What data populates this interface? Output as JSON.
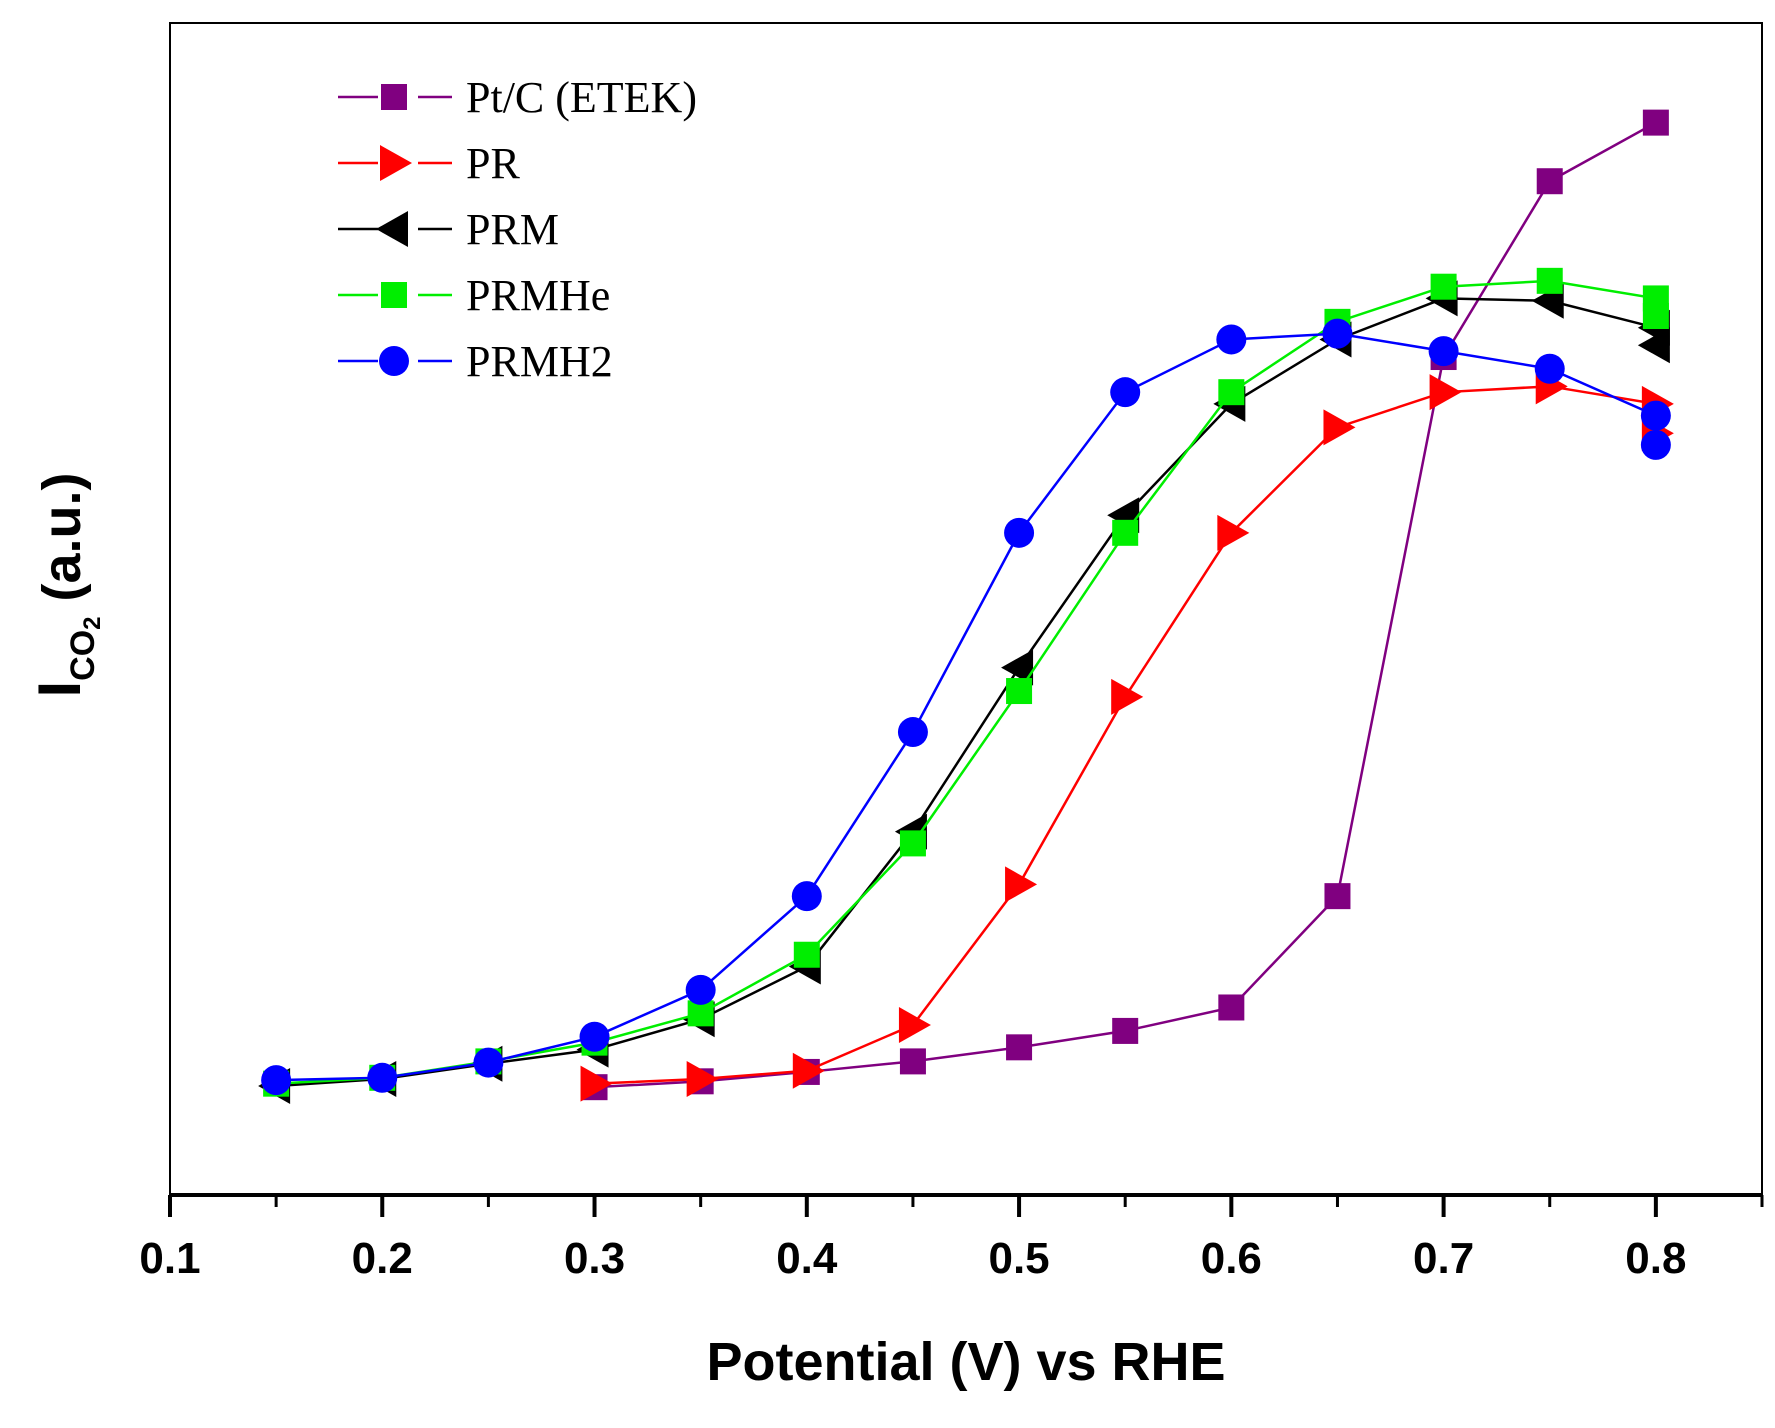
{
  "chart_data": {
    "type": "line",
    "title": "",
    "xlabel": "Potential (V) vs RHE",
    "ylabel": {
      "main": "I",
      "sub": "CO",
      "sub2": "2",
      "unit": " (a.u.)"
    },
    "xlim": [
      0.1,
      0.85
    ],
    "ylim": [
      0,
      100
    ],
    "x_ticks": [
      "0.1",
      "0.2",
      "0.3",
      "0.4",
      "0.5",
      "0.6",
      "0.7",
      "0.8"
    ],
    "y_ticks_visible": false,
    "legend_position": "top-left",
    "series": [
      {
        "name": "Pt/C (ETEK)",
        "color": "#800080",
        "marker": "square",
        "x": [
          0.3,
          0.35,
          0.4,
          0.45,
          0.5,
          0.55,
          0.6,
          0.65,
          0.7,
          0.75,
          0.8
        ],
        "y": [
          9.2,
          9.7,
          10.5,
          11.4,
          12.6,
          14.0,
          16.0,
          25.5,
          71.5,
          86.5,
          91.5
        ]
      },
      {
        "name": "PR",
        "color": "#ff0000",
        "marker": "triangle-right",
        "x": [
          0.3,
          0.35,
          0.4,
          0.45,
          0.5,
          0.55,
          0.6,
          0.65,
          0.7,
          0.75,
          0.8
        ],
        "y": [
          9.5,
          9.9,
          10.6,
          14.5,
          26.5,
          42.5,
          56.5,
          65.5,
          68.5,
          69.0,
          67.5
        ]
      },
      {
        "name": "PRM",
        "color": "#000000",
        "marker": "triangle-left",
        "x": [
          0.15,
          0.2,
          0.25,
          0.3,
          0.35,
          0.4,
          0.45,
          0.5,
          0.55,
          0.6,
          0.65,
          0.7,
          0.75,
          0.8
        ],
        "y": [
          9.3,
          9.9,
          11.2,
          12.4,
          15.0,
          19.5,
          31.0,
          45.0,
          58.0,
          67.5,
          73.0,
          76.5,
          76.3,
          74.0
        ]
      },
      {
        "name": "PRMHe",
        "color": "#00ee00",
        "marker": "square",
        "x": [
          0.15,
          0.2,
          0.25,
          0.3,
          0.35,
          0.4,
          0.45,
          0.5,
          0.55,
          0.6,
          0.65,
          0.7,
          0.75,
          0.8
        ],
        "y": [
          9.5,
          10.0,
          11.4,
          13.0,
          15.5,
          20.5,
          30.0,
          43.0,
          56.5,
          68.5,
          74.5,
          77.5,
          78.0,
          76.5
        ]
      },
      {
        "name": "PRMH2",
        "color": "#0000ff",
        "marker": "circle",
        "x": [
          0.15,
          0.2,
          0.25,
          0.3,
          0.35,
          0.4,
          0.45,
          0.5,
          0.55,
          0.6,
          0.65,
          0.7,
          0.75,
          0.8
        ],
        "y": [
          9.8,
          10.0,
          11.3,
          13.5,
          17.5,
          25.5,
          39.5,
          56.5,
          68.5,
          73.0,
          73.5,
          72.0,
          70.5,
          66.5
        ]
      }
    ],
    "extra_points": [
      {
        "series": "PR",
        "x": 0.8,
        "y": 65.0
      },
      {
        "series": "PRM",
        "x": 0.8,
        "y": 72.5
      },
      {
        "series": "PRMHe",
        "x": 0.8,
        "y": 75.0
      },
      {
        "series": "PRMH2",
        "x": 0.8,
        "y": 64.0
      }
    ]
  }
}
